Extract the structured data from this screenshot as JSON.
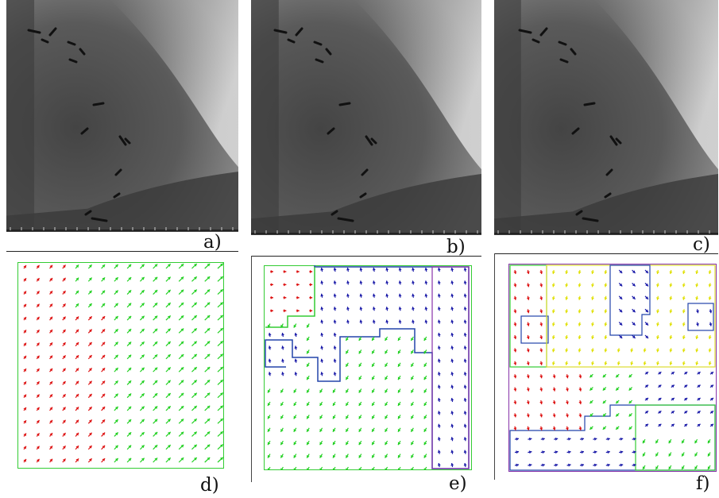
{
  "figure": {
    "labels": {
      "a": "a)",
      "b": "b)",
      "c": "c)",
      "d": "d)",
      "e": "e)",
      "f": "f)"
    }
  },
  "colors": {
    "green": "#22d022",
    "red": "#dd1111",
    "blue": "#1a1aa8",
    "yellow": "#e0e000",
    "purple": "#7a1a8a",
    "border_green": "#33cc33",
    "border_blue": "#2244aa",
    "border_yellow": "#dddd33",
    "border_purple": "#8833aa"
  }
}
